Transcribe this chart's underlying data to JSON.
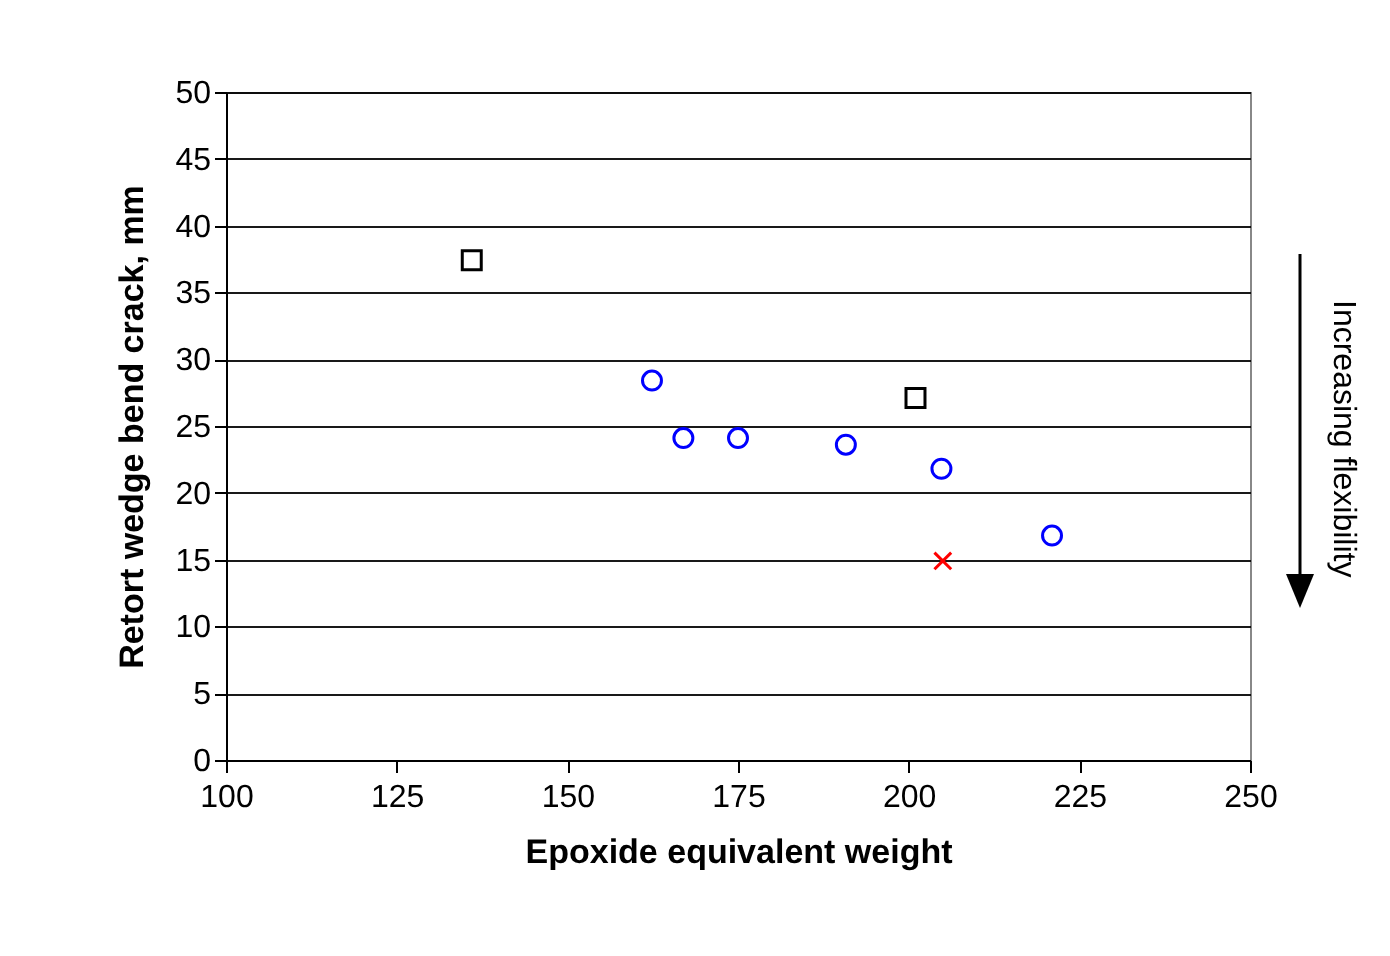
{
  "chart_data": {
    "type": "scatter",
    "xlabel": "Epoxide equivalent weight",
    "ylabel": "Retort wedge bend crack, mm",
    "xlim": [
      100,
      250
    ],
    "xticks": [
      100,
      125,
      150,
      175,
      200,
      225,
      250
    ],
    "ylim": [
      0,
      50
    ],
    "yticks": [
      0,
      5,
      10,
      15,
      20,
      25,
      30,
      35,
      40,
      45,
      50
    ],
    "grid": "y",
    "annotations": [
      "Increasing flexibility"
    ],
    "series": [
      {
        "color": "#0000ff",
        "marker": "circle",
        "x": [
          162.4,
          167,
          175,
          190.8,
          204.8,
          221
        ],
        "values": [
          28.4,
          24.1,
          24.1,
          23.6,
          21.8,
          16.8
        ]
      },
      {
        "color": "#000000",
        "marker": "square",
        "x": [
          136,
          201
        ],
        "values": [
          37.4,
          27.1
        ]
      },
      {
        "color": "#ff0000",
        "marker": "cross",
        "x": [
          205
        ],
        "values": [
          14.9
        ]
      }
    ]
  }
}
